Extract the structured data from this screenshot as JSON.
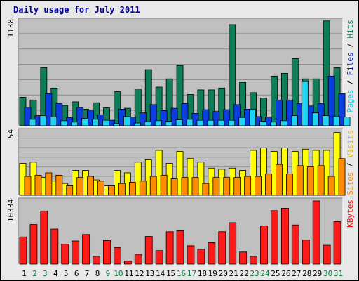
{
  "chart_data": [
    {
      "type": "bar",
      "title": "Daily usage for July 2011",
      "x": [
        "1",
        "2",
        "3",
        "4",
        "5",
        "6",
        "7",
        "8",
        "9",
        "10",
        "11",
        "12",
        "13",
        "14",
        "15",
        "16",
        "17",
        "18",
        "19",
        "20",
        "21",
        "22",
        "23",
        "24",
        "25",
        "26",
        "27",
        "28",
        "29",
        "30",
        "31"
      ],
      "ymax_label": "1138",
      "ymax": 1138,
      "right_label": [
        "Pages",
        "Files",
        "Hits"
      ],
      "series": [
        {
          "name": "Hits",
          "color": "#0d7d5a",
          "values": [
            310,
            280,
            630,
            410,
            220,
            260,
            180,
            250,
            195,
            370,
            190,
            400,
            610,
            420,
            510,
            655,
            340,
            390,
            390,
            410,
            1100,
            470,
            360,
            300,
            540,
            570,
            730,
            510,
            510,
            1140,
            630
          ]
        },
        {
          "name": "Files",
          "color": "#0a3ee0",
          "values": [
            200,
            110,
            350,
            240,
            90,
            200,
            170,
            120,
            60,
            180,
            95,
            140,
            230,
            165,
            190,
            240,
            135,
            175,
            155,
            175,
            230,
            180,
            100,
            95,
            280,
            280,
            240,
            215,
            240,
            540,
            350
          ]
        },
        {
          "name": "Pages",
          "color": "#1fd3f5",
          "values": [
            70,
            110,
            95,
            55,
            40,
            80,
            70,
            60,
            25,
            100,
            30,
            45,
            55,
            50,
            65,
            70,
            60,
            60,
            60,
            60,
            90,
            180,
            50,
            40,
            55,
            110,
            480,
            140,
            110,
            100,
            95
          ]
        }
      ]
    },
    {
      "type": "bar",
      "ymax_label": "54",
      "ymax": 54,
      "right_label": [
        "Sites",
        "Visits"
      ],
      "series": [
        {
          "name": "Visits",
          "color": "#ffff00",
          "values": [
            27,
            28,
            15,
            12,
            10,
            21,
            21,
            13,
            8,
            21,
            19,
            28,
            30,
            38,
            27,
            37,
            31,
            28,
            23,
            22,
            23,
            21,
            38,
            40,
            37,
            40,
            37,
            39,
            38,
            38,
            53
          ]
        },
        {
          "name": "Sites",
          "color": "#ff8c00",
          "values": [
            16,
            17,
            19,
            17,
            8,
            15,
            16,
            12,
            8,
            10,
            11,
            12,
            16,
            17,
            14,
            15,
            15,
            10,
            15,
            15,
            15,
            16,
            16,
            18,
            26,
            18,
            25,
            24,
            25,
            16,
            31
          ]
        }
      ]
    },
    {
      "type": "bar",
      "ymax_label": "10334",
      "ymax": 10334,
      "right_label": [
        "KBytes"
      ],
      "series": [
        {
          "name": "KBytes",
          "color": "#ff1a1a",
          "values": [
            4448,
            6480,
            8690,
            5735,
            3270,
            3790,
            4843,
            1285,
            3872,
            2728,
            482,
            1610,
            4528,
            2210,
            5300,
            5470,
            3000,
            2430,
            3515,
            5310,
            6780,
            1982,
            1285,
            6265,
            8745,
            9135,
            6405,
            3935,
            10334,
            3095,
            6960
          ]
        }
      ]
    }
  ],
  "weekend_days": [
    2,
    3,
    9,
    10,
    16,
    17,
    23,
    24,
    30,
    31
  ],
  "colors": {
    "title": "#0000aa",
    "plot_bg": "#c0c0c0",
    "frame_bg": "#e8e8e8",
    "grid": "#8a8a8a",
    "day_label": "#000000",
    "weekend_label": "#0b7d3e"
  }
}
